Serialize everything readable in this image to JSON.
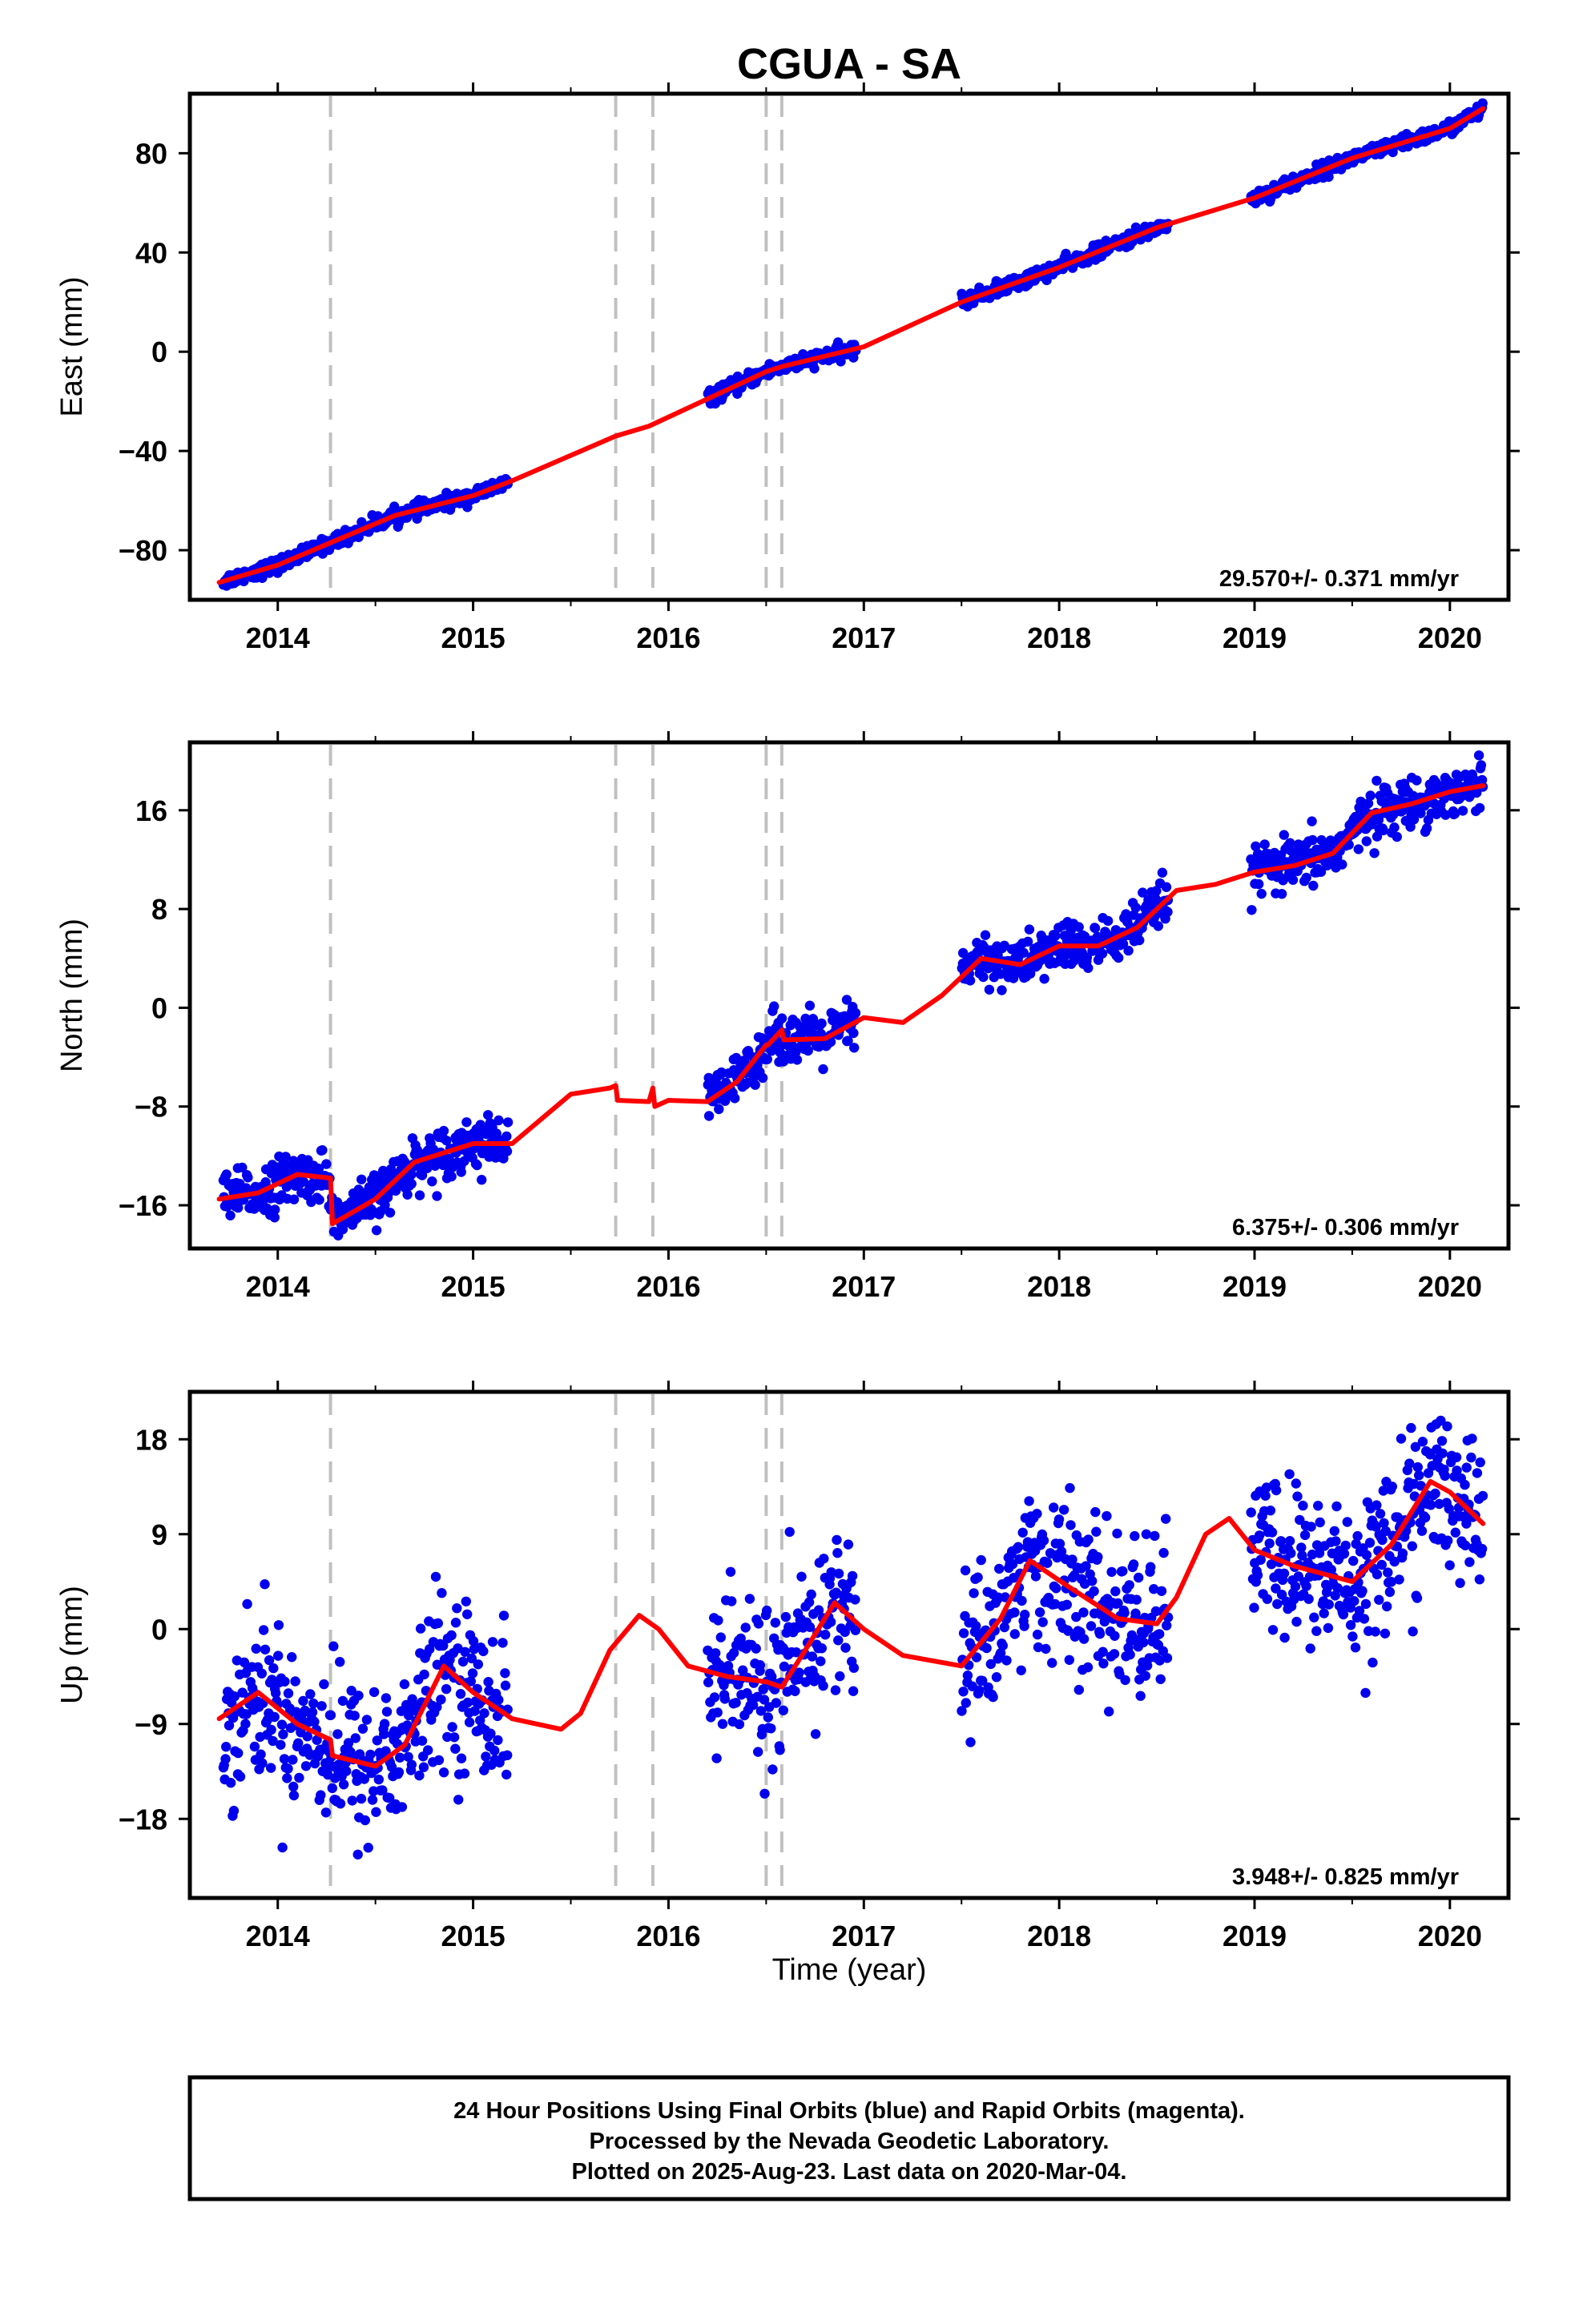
{
  "title": "CGUA - SA",
  "footer": {
    "line1": "24 Hour Positions Using Final Orbits (blue) and Rapid Orbits (magenta).",
    "line2": "Processed by the Nevada Geodetic Laboratory.",
    "line3": "Plotted on 2025-Aug-23. Last data on 2020-Mar-04."
  },
  "colors": {
    "data_points": "#0000ee",
    "model_fit": "#ff0000",
    "event_lines": "#c0c0c0",
    "frame": "#000000"
  },
  "chart_data": [
    {
      "type": "scatter",
      "panel": "east",
      "ylabel": "East (mm)",
      "xlabel": "",
      "xlim": [
        2013.55,
        2020.3
      ],
      "ylim": [
        -100,
        104
      ],
      "x_ticks": [
        "2014",
        "2015",
        "2016",
        "2017",
        "2018",
        "2019",
        "2020"
      ],
      "y_ticks": [
        "80",
        "40",
        "0",
        "−40",
        "−80"
      ],
      "y_tick_values": [
        80,
        40,
        0,
        -40,
        -80
      ],
      "rate_label": "29.570+/- 0.371 mm/yr",
      "event_lines_x": [
        2014.27,
        2015.73,
        2015.92,
        2016.5,
        2016.58
      ],
      "data_segments": [
        [
          2013.72,
          2015.18
        ],
        [
          2016.2,
          2016.96
        ],
        [
          2017.5,
          2018.56
        ],
        [
          2018.98,
          2020.17
        ]
      ],
      "scatter_sd": 1.4,
      "series": [
        {
          "name": "model",
          "x": [
            2013.7,
            2014.0,
            2014.27,
            2014.6,
            2015.0,
            2015.2,
            2015.7,
            2015.73,
            2015.9,
            2016.2,
            2016.5,
            2016.58,
            2017.0,
            2017.5,
            2018.0,
            2018.5,
            2019.0,
            2019.5,
            2020.0,
            2020.17
          ],
          "values": [
            -93,
            -86,
            -77,
            -66,
            -58,
            -52,
            -35,
            -34,
            -30,
            -19,
            -8,
            -6,
            2,
            20,
            34,
            50,
            62,
            78,
            90,
            98
          ]
        }
      ]
    },
    {
      "type": "scatter",
      "panel": "north",
      "ylabel": "North (mm)",
      "xlabel": "",
      "xlim": [
        2013.55,
        2020.3
      ],
      "ylim": [
        -19.5,
        21.5
      ],
      "x_ticks": [
        "2014",
        "2015",
        "2016",
        "2017",
        "2018",
        "2019",
        "2020"
      ],
      "y_ticks": [
        "16",
        "8",
        "0",
        "−8",
        "−16"
      ],
      "y_tick_values": [
        16,
        8,
        0,
        -8,
        -16
      ],
      "rate_label": "6.375+/- 0.306 mm/yr",
      "event_lines_x": [
        2014.27,
        2015.73,
        2015.92,
        2016.5,
        2016.58
      ],
      "data_segments": [
        [
          2013.72,
          2015.18
        ],
        [
          2016.2,
          2016.96
        ],
        [
          2017.5,
          2018.56
        ],
        [
          2018.98,
          2020.17
        ]
      ],
      "scatter_sd": 1.0,
      "series": [
        {
          "name": "model",
          "x": [
            2013.7,
            2013.9,
            2014.1,
            2014.27,
            2014.28,
            2014.5,
            2014.7,
            2015.0,
            2015.2,
            2015.5,
            2015.7,
            2015.73,
            2015.74,
            2015.9,
            2015.92,
            2015.93,
            2016.0,
            2016.2,
            2016.35,
            2016.5,
            2016.51,
            2016.58,
            2016.59,
            2016.8,
            2017.0,
            2017.2,
            2017.4,
            2017.6,
            2017.8,
            2018.0,
            2018.2,
            2018.4,
            2018.6,
            2018.8,
            2019.0,
            2019.2,
            2019.4,
            2019.6,
            2019.8,
            2020.0,
            2020.17
          ],
          "values": [
            -15.5,
            -15,
            -13.5,
            -13.8,
            -17.5,
            -15.5,
            -12.5,
            -11,
            -11,
            -7,
            -6.5,
            -6.3,
            -7.5,
            -7.6,
            -6.5,
            -8,
            -7.5,
            -7.6,
            -6,
            -3,
            -3,
            -1.8,
            -2.6,
            -2.5,
            -0.8,
            -1.2,
            1,
            4,
            3.5,
            5,
            5,
            6.5,
            9.5,
            10,
            11,
            11.5,
            12.5,
            15.8,
            16.5,
            17.5,
            18
          ]
        }
      ]
    },
    {
      "type": "scatter",
      "panel": "up",
      "ylabel": "Up (mm)",
      "xlabel": "Time (year)",
      "xlim": [
        2013.55,
        2020.3
      ],
      "ylim": [
        -25.5,
        22.5
      ],
      "x_ticks": [
        "2014",
        "2015",
        "2016",
        "2017",
        "2018",
        "2019",
        "2020"
      ],
      "y_ticks": [
        "18",
        "9",
        "0",
        "−9",
        "−18"
      ],
      "y_tick_values": [
        18,
        9,
        0,
        -9,
        -18
      ],
      "rate_label": "3.948+/- 0.825 mm/yr",
      "event_lines_x": [
        2014.27,
        2015.73,
        2015.92,
        2016.5,
        2016.58
      ],
      "data_segments": [
        [
          2013.72,
          2015.18
        ],
        [
          2016.2,
          2016.96
        ],
        [
          2017.5,
          2018.56
        ],
        [
          2018.98,
          2020.17
        ]
      ],
      "scatter_sd": 3.8,
      "series": [
        {
          "name": "model",
          "x": [
            2013.7,
            2013.9,
            2014.1,
            2014.27,
            2014.28,
            2014.5,
            2014.65,
            2014.85,
            2015.0,
            2015.2,
            2015.45,
            2015.55,
            2015.7,
            2015.85,
            2015.95,
            2016.1,
            2016.3,
            2016.5,
            2016.58,
            2016.7,
            2016.85,
            2017.0,
            2017.2,
            2017.5,
            2017.7,
            2017.85,
            2018.05,
            2018.3,
            2018.5,
            2018.6,
            2018.75,
            2018.87,
            2019.0,
            2019.2,
            2019.5,
            2019.7,
            2019.9,
            2020.0,
            2020.17
          ],
          "values": [
            -8.5,
            -6,
            -9,
            -10.5,
            -12,
            -13,
            -11,
            -3.5,
            -6,
            -8.5,
            -9.5,
            -8,
            -2,
            1.3,
            0,
            -3.5,
            -4.5,
            -5,
            -5.5,
            -2,
            2.5,
            0,
            -2.5,
            -3.5,
            1,
            6.5,
            4,
            1,
            0.5,
            3,
            9,
            10.5,
            7.5,
            6,
            4.5,
            8,
            14,
            13,
            10
          ]
        }
      ]
    }
  ]
}
